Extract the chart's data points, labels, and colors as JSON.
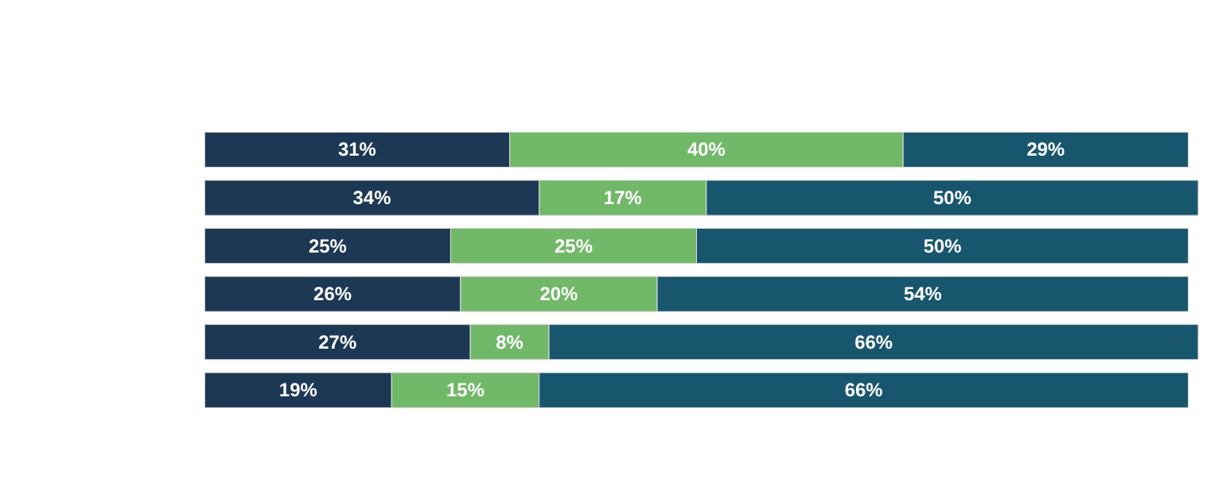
{
  "chart_data": {
    "type": "bar",
    "orientation": "horizontal",
    "stacked": true,
    "categories": [
      null,
      null,
      null,
      null,
      null,
      null
    ],
    "series": [
      {
        "color": "#1d3855",
        "values": [
          31,
          34,
          25,
          26,
          27,
          19
        ],
        "value_labels": [
          "31%",
          "34%",
          "25%",
          "26%",
          "27%",
          "19%"
        ]
      },
      {
        "color": "#72b869",
        "values": [
          40,
          17,
          25,
          20,
          8,
          15
        ],
        "value_labels": [
          "40%",
          "17%",
          "25%",
          "20%",
          "8%",
          "15%"
        ]
      },
      {
        "color": "#18566e",
        "values": [
          29,
          50,
          50,
          54,
          66,
          66
        ],
        "value_labels": [
          "29%",
          "50%",
          "50%",
          "54%",
          "66%",
          "66%"
        ]
      }
    ]
  }
}
